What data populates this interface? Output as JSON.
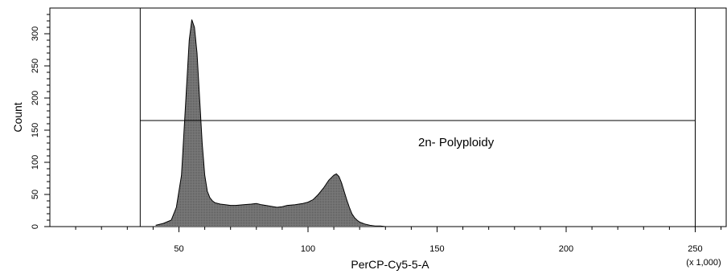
{
  "chart_data": {
    "type": "area",
    "title": "",
    "xlabel": "PerCP-Cy5-5-A",
    "ylabel": "Count",
    "x_multiplier": "(x 1,000)",
    "xlim": [
      0,
      262
    ],
    "ylim": [
      0,
      330
    ],
    "x_ticks": [
      {
        "value": 50,
        "label": "50"
      },
      {
        "value": 100,
        "label": "100"
      },
      {
        "value": 150,
        "label": "150"
      },
      {
        "value": 200,
        "label": "200"
      },
      {
        "value": 250,
        "label": "250"
      }
    ],
    "y_ticks": [
      {
        "value": 0,
        "label": "0"
      },
      {
        "value": 50,
        "label": "50"
      },
      {
        "value": 100,
        "label": "100"
      },
      {
        "value": 150,
        "label": "150"
      },
      {
        "value": 200,
        "label": "200"
      },
      {
        "value": 250,
        "label": "250"
      },
      {
        "value": 300,
        "label": "300"
      }
    ],
    "series": [
      {
        "x": [
          41,
          44,
          47,
          49,
          51,
          52,
          53,
          54,
          55,
          56,
          57,
          58,
          59,
          60,
          61,
          62,
          63,
          64,
          66,
          68,
          70,
          72,
          75,
          78,
          80,
          82,
          85,
          88,
          90,
          92,
          95,
          98,
          100,
          102,
          104,
          106,
          108,
          110,
          111,
          112,
          113,
          114,
          115,
          116,
          117,
          118,
          119,
          120,
          122,
          124,
          126,
          128,
          130
        ],
        "values": [
          2,
          5,
          10,
          30,
          80,
          150,
          220,
          290,
          322,
          310,
          270,
          200,
          130,
          80,
          55,
          45,
          40,
          37,
          35,
          34,
          33,
          33,
          34,
          35,
          36,
          34,
          32,
          30,
          31,
          33,
          34,
          36,
          38,
          42,
          50,
          60,
          72,
          80,
          82,
          78,
          68,
          55,
          42,
          30,
          20,
          14,
          10,
          7,
          4,
          2,
          1,
          1,
          0
        ]
      }
    ],
    "fill_color": "#6e6e6e",
    "outline_color": "#000000",
    "grid": false,
    "gate": {
      "label": "2n- Polyploidy",
      "x_start": 35,
      "x_end": 250,
      "y": 165
    }
  }
}
